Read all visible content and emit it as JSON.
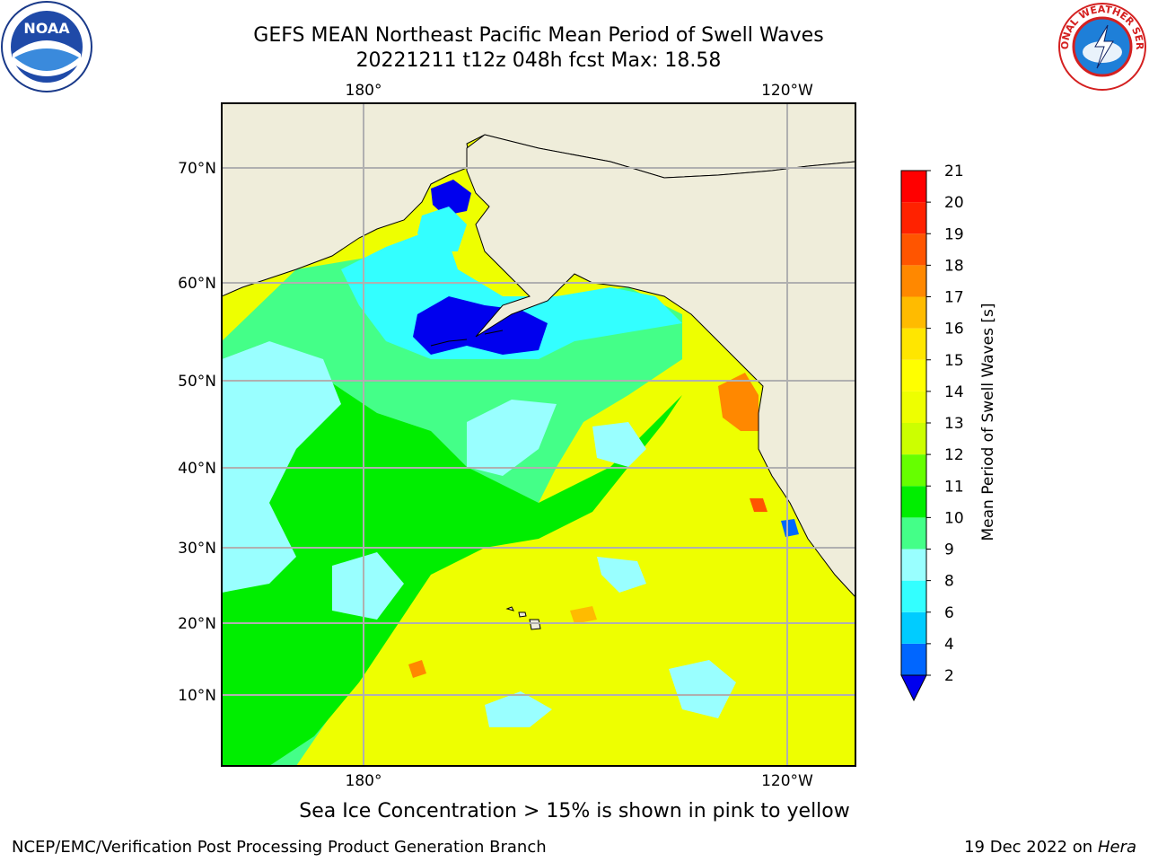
{
  "chart_data": {
    "type": "heatmap",
    "title": "GEFS MEAN Northeast Pacific Mean Period of Swell Waves",
    "subtitle": "20221211 t12z 048h fcst   Max: 18.58",
    "colorbar": {
      "label": "Mean Period of Swell Waves [s]",
      "levels": [
        2,
        4,
        6,
        8,
        9,
        10,
        11,
        12,
        13,
        14,
        15,
        16,
        17,
        18,
        19,
        20,
        21
      ],
      "colors": [
        "#0066ff",
        "#00ccff",
        "#33ffff",
        "#99ffff",
        "#44ff88",
        "#00ee00",
        "#66ff00",
        "#ccff00",
        "#eeff00",
        "#ffff00",
        "#ffe600",
        "#ffbb00",
        "#ff8800",
        "#ff5500",
        "#ff2200",
        "#ff0000"
      ],
      "extend_below_color": "#0000ee",
      "tick_labels": [
        "2",
        "4",
        "6",
        "8",
        "9",
        "10",
        "11",
        "12",
        "13",
        "14",
        "15",
        "16",
        "17",
        "18",
        "19",
        "20",
        "21"
      ]
    },
    "lon_ticks_top": [
      "180°",
      "120°W"
    ],
    "lon_ticks_bottom": [
      "180°",
      "120°W"
    ],
    "lat_ticks": [
      "70°N",
      "60°N",
      "50°N",
      "40°N",
      "30°N",
      "20°N",
      "10°N"
    ],
    "max_value": 18.58,
    "grid": true
  },
  "caption": "Sea Ice Concentration > 15% is shown in pink to yellow",
  "footer": {
    "left": "NCEP/EMC/Verification Post Processing Product Generation Branch",
    "right_date": "19 Dec 2022 on",
    "right_host": "Hera"
  },
  "logos": {
    "noaa_text": "NOAA",
    "nws_text": "NATIONAL WEATHER SERVICE"
  },
  "colors": {
    "land": "#efedda",
    "grid": "#b0b0b0",
    "ocean_base": "#eeff00"
  }
}
